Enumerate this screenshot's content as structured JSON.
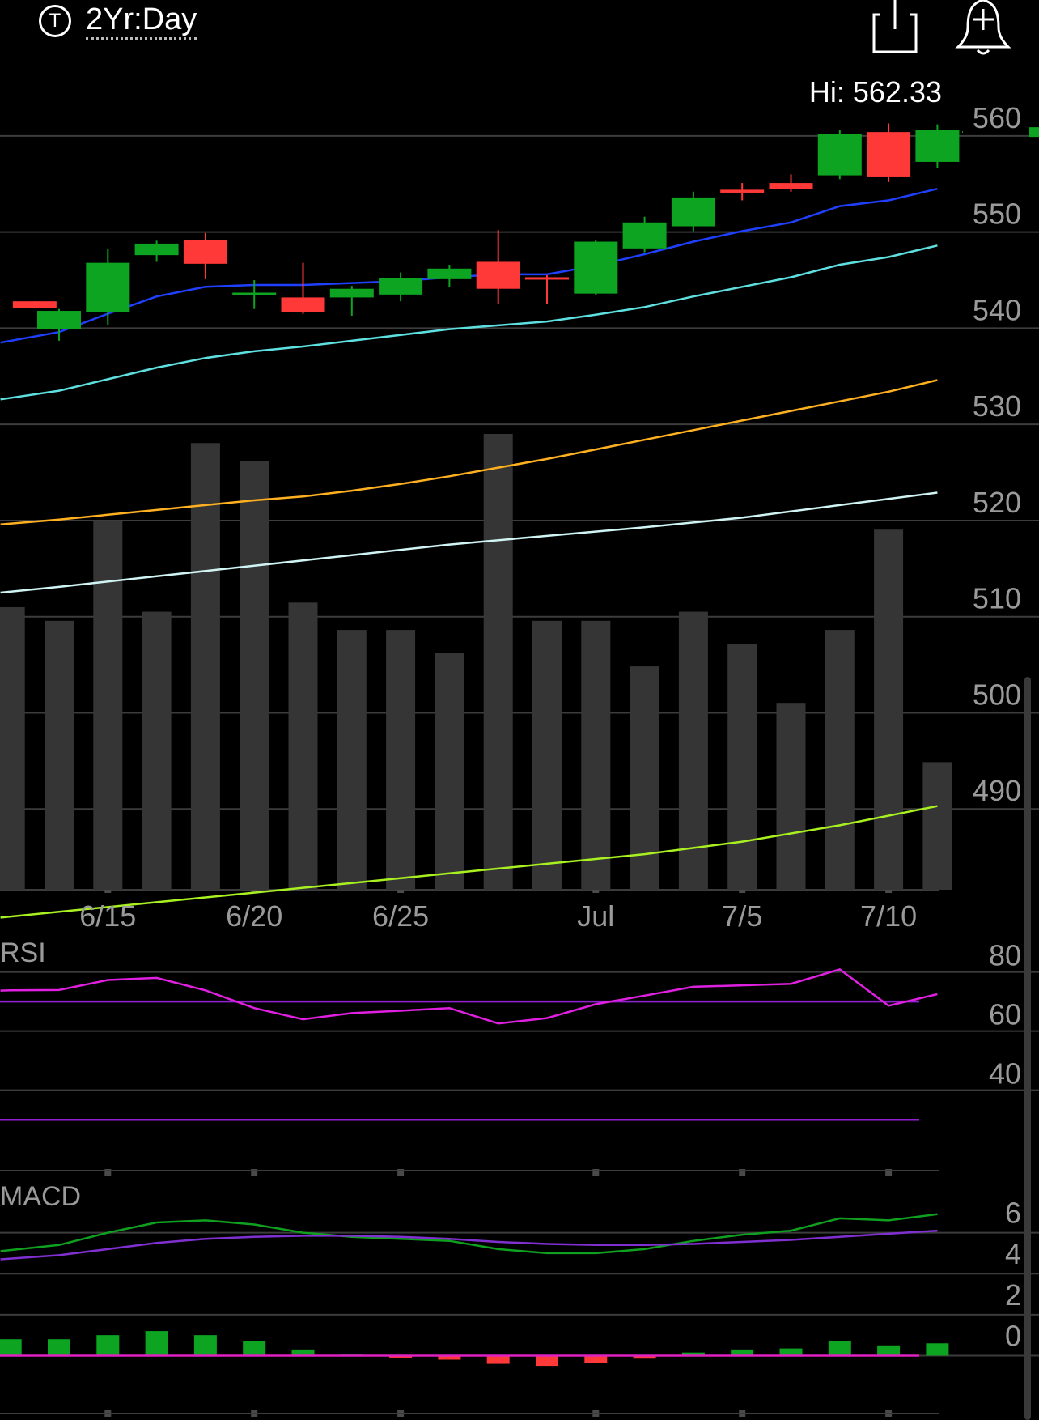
{
  "header": {
    "ticker_icon": "T",
    "range": "2Yr:Day",
    "share_icon": "share-icon",
    "alert_icon": "add-alert-icon"
  },
  "chart_data": [
    {
      "type": "candlestick",
      "hi_label": "Hi: 562.33",
      "y_ticks": [
        560,
        550,
        540,
        530,
        520,
        510,
        500,
        490
      ],
      "ylim": [
        481.6,
        567.4
      ],
      "x_tick_labels": [
        {
          "date": "6/15",
          "index": 1
        },
        {
          "date": "6/20",
          "index": 4
        },
        {
          "date": "6/25",
          "index": 7
        },
        {
          "date": "Jul",
          "index": 11
        },
        {
          "date": "7/5",
          "index": 14
        },
        {
          "date": "7/10",
          "index": 17
        }
      ],
      "candles": [
        {
          "index": -0.5,
          "open": 542.8,
          "close": 542.1,
          "high": 542.8,
          "low": 542.1
        },
        {
          "index": 0,
          "open": 539.9,
          "close": 541.8,
          "high": 542.0,
          "low": 538.7
        },
        {
          "index": 1,
          "open": 541.7,
          "close": 546.8,
          "high": 548.2,
          "low": 540.3
        },
        {
          "index": 2,
          "open": 547.6,
          "close": 548.8,
          "high": 549.1,
          "low": 546.9
        },
        {
          "index": 3,
          "open": 549.2,
          "close": 546.7,
          "high": 549.9,
          "low": 545.1
        },
        {
          "index": 4,
          "open": 543.7,
          "close": 543.7,
          "high": 545.0,
          "low": 542.0
        },
        {
          "index": 5,
          "open": 543.2,
          "close": 541.7,
          "high": 546.8,
          "low": 541.5
        },
        {
          "index": 6,
          "open": 543.2,
          "close": 544.1,
          "high": 544.4,
          "low": 541.3
        },
        {
          "index": 7,
          "open": 543.5,
          "close": 545.2,
          "high": 545.8,
          "low": 542.8
        },
        {
          "index": 8,
          "open": 545.1,
          "close": 546.2,
          "high": 546.6,
          "low": 544.3
        },
        {
          "index": 9,
          "open": 546.9,
          "close": 544.1,
          "high": 550.2,
          "low": 542.5
        },
        {
          "index": 10,
          "open": 545.3,
          "close": 545.1,
          "high": 545.5,
          "low": 542.5
        },
        {
          "index": 11,
          "open": 543.6,
          "close": 549.0,
          "high": 549.2,
          "low": 543.4
        },
        {
          "index": 12,
          "open": 548.3,
          "close": 551.0,
          "high": 551.6,
          "low": 547.9
        },
        {
          "index": 13,
          "open": 550.6,
          "close": 553.6,
          "high": 554.2,
          "low": 550.1
        },
        {
          "index": 14,
          "open": 554.4,
          "close": 554.1,
          "high": 555.1,
          "low": 553.3
        },
        {
          "index": 15,
          "open": 555.1,
          "close": 554.5,
          "high": 556.0,
          "low": 554.2
        },
        {
          "index": 16,
          "open": 555.9,
          "close": 560.2,
          "high": 560.6,
          "low": 555.5
        },
        {
          "index": 17,
          "open": 560.4,
          "close": 555.7,
          "high": 561.3,
          "low": 555.2
        },
        {
          "index": 18,
          "open": 557.3,
          "close": 560.6,
          "high": 561.2,
          "low": 556.7
        }
      ],
      "last_price_marker": 560.4,
      "moving_averages": [
        {
          "color": "#2040ff",
          "points": [
            [
              -1.2,
              538.5
            ],
            [
              0,
              539.6
            ],
            [
              1,
              541.5
            ],
            [
              2,
              543.3
            ],
            [
              3,
              544.3
            ],
            [
              4,
              544.5
            ],
            [
              5,
              544.5
            ],
            [
              6,
              544.7
            ],
            [
              7,
              544.9
            ],
            [
              8,
              545.3
            ],
            [
              9,
              545.6
            ],
            [
              10,
              545.6
            ],
            [
              11,
              546.5
            ],
            [
              12,
              547.7
            ],
            [
              13,
              549.0
            ],
            [
              14,
              550.1
            ],
            [
              15,
              551.0
            ],
            [
              16,
              552.7
            ],
            [
              17,
              553.3
            ],
            [
              18,
              554.5
            ]
          ]
        },
        {
          "color": "#5ee0e0",
          "points": [
            [
              -1.2,
              532.6
            ],
            [
              0,
              533.5
            ],
            [
              1,
              534.7
            ],
            [
              2,
              535.9
            ],
            [
              3,
              536.9
            ],
            [
              4,
              537.6
            ],
            [
              5,
              538.1
            ],
            [
              6,
              538.7
            ],
            [
              7,
              539.3
            ],
            [
              8,
              539.9
            ],
            [
              9,
              540.3
            ],
            [
              10,
              540.7
            ],
            [
              11,
              541.4
            ],
            [
              12,
              542.2
            ],
            [
              13,
              543.3
            ],
            [
              14,
              544.3
            ],
            [
              15,
              545.3
            ],
            [
              16,
              546.6
            ],
            [
              17,
              547.4
            ],
            [
              18,
              548.6
            ]
          ]
        },
        {
          "color": "#ffb020",
          "points": [
            [
              -1.2,
              519.6
            ],
            [
              0,
              520.1
            ],
            [
              1,
              520.6
            ],
            [
              2,
              521.1
            ],
            [
              3,
              521.6
            ],
            [
              4,
              522.1
            ],
            [
              5,
              522.5
            ],
            [
              6,
              523.1
            ],
            [
              7,
              523.8
            ],
            [
              8,
              524.6
            ],
            [
              9,
              525.5
            ],
            [
              10,
              526.4
            ],
            [
              11,
              527.4
            ],
            [
              12,
              528.4
            ],
            [
              13,
              529.4
            ],
            [
              14,
              530.4
            ],
            [
              15,
              531.4
            ],
            [
              16,
              532.4
            ],
            [
              17,
              533.4
            ],
            [
              18,
              534.6
            ]
          ]
        },
        {
          "color": "#d0f4f4",
          "points": [
            [
              -1.2,
              512.5
            ],
            [
              0,
              513.1
            ],
            [
              2,
              514.2
            ],
            [
              4,
              515.3
            ],
            [
              6,
              516.4
            ],
            [
              8,
              517.5
            ],
            [
              10,
              518.4
            ],
            [
              12,
              519.3
            ],
            [
              14,
              520.3
            ],
            [
              16,
              521.6
            ],
            [
              18,
              522.9
            ]
          ]
        },
        {
          "color": "#a8f020",
          "points": [
            [
              -1.2,
              478.7
            ],
            [
              0,
              479.3
            ],
            [
              2,
              480.3
            ],
            [
              4,
              481.3
            ],
            [
              6,
              482.3
            ],
            [
              8,
              483.3
            ],
            [
              10,
              484.3
            ],
            [
              12,
              485.3
            ],
            [
              14,
              486.6
            ],
            [
              16,
              488.3
            ],
            [
              18,
              490.3
            ]
          ]
        }
      ],
      "volume_relative": [
        0.62,
        0.59,
        0.81,
        0.61,
        0.98,
        0.94,
        0.63,
        0.57,
        0.57,
        0.52,
        1.0,
        0.59,
        0.59,
        0.49,
        0.61,
        0.54,
        0.41,
        0.57,
        0.79,
        0.28
      ]
    },
    {
      "type": "line",
      "title": "RSI",
      "y_ticks": [
        80,
        60,
        40
      ],
      "ylim": [
        12.8,
        86.2
      ],
      "reference_lines": [
        {
          "value": 70,
          "color": "#9020d0"
        },
        {
          "value": 30,
          "color": "#9020d0"
        }
      ],
      "series": [
        {
          "color": "#e020e0",
          "points": [
            [
              -1.2,
              73.7
            ],
            [
              -1,
              73.8
            ],
            [
              0,
              73.9
            ],
            [
              1,
              77.3
            ],
            [
              2,
              78.0
            ],
            [
              3,
              73.8
            ],
            [
              4,
              67.8
            ],
            [
              5,
              64.0
            ],
            [
              6,
              66.1
            ],
            [
              7,
              66.9
            ],
            [
              8,
              67.8
            ],
            [
              9,
              62.6
            ],
            [
              10,
              64.4
            ],
            [
              11,
              69.1
            ],
            [
              12,
              72.0
            ],
            [
              13,
              75.0
            ],
            [
              14,
              75.5
            ],
            [
              15,
              76.0
            ],
            [
              16,
              80.9
            ],
            [
              17,
              68.6
            ],
            [
              18,
              72.5
            ]
          ]
        }
      ]
    },
    {
      "type": "line",
      "title": "MACD",
      "y_ticks": [
        6,
        4,
        2,
        0
      ],
      "ylim": [
        -1.8,
        8.0
      ],
      "series": [
        {
          "color": "#10a020",
          "points": [
            [
              -1.2,
              5.1
            ],
            [
              0,
              5.4
            ],
            [
              1,
              6.0
            ],
            [
              2,
              6.5
            ],
            [
              3,
              6.6
            ],
            [
              4,
              6.4
            ],
            [
              5,
              6.0
            ],
            [
              6,
              5.8
            ],
            [
              7,
              5.7
            ],
            [
              8,
              5.6
            ],
            [
              9,
              5.2
            ],
            [
              10,
              5.0
            ],
            [
              11,
              5.0
            ],
            [
              12,
              5.2
            ],
            [
              13,
              5.6
            ],
            [
              14,
              5.9
            ],
            [
              15,
              6.1
            ],
            [
              16,
              6.7
            ],
            [
              17,
              6.6
            ],
            [
              18,
              6.9
            ]
          ]
        },
        {
          "color": "#8030d0",
          "points": [
            [
              -1.2,
              4.7
            ],
            [
              0,
              4.9
            ],
            [
              1,
              5.2
            ],
            [
              2,
              5.5
            ],
            [
              3,
              5.7
            ],
            [
              4,
              5.8
            ],
            [
              5,
              5.85
            ],
            [
              6,
              5.85
            ],
            [
              7,
              5.8
            ],
            [
              8,
              5.7
            ],
            [
              9,
              5.55
            ],
            [
              10,
              5.45
            ],
            [
              11,
              5.4
            ],
            [
              12,
              5.4
            ],
            [
              13,
              5.45
            ],
            [
              14,
              5.55
            ],
            [
              15,
              5.65
            ],
            [
              16,
              5.8
            ],
            [
              17,
              5.95
            ],
            [
              18,
              6.1
            ]
          ]
        }
      ],
      "zero_line_color": "#e020c0",
      "histogram": [
        0.8,
        0.8,
        1.0,
        1.2,
        1.0,
        0.7,
        0.3,
        0.05,
        -0.1,
        -0.2,
        -0.4,
        -0.5,
        -0.35,
        -0.15,
        0.15,
        0.3,
        0.35,
        0.7,
        0.5,
        0.6
      ]
    }
  ]
}
